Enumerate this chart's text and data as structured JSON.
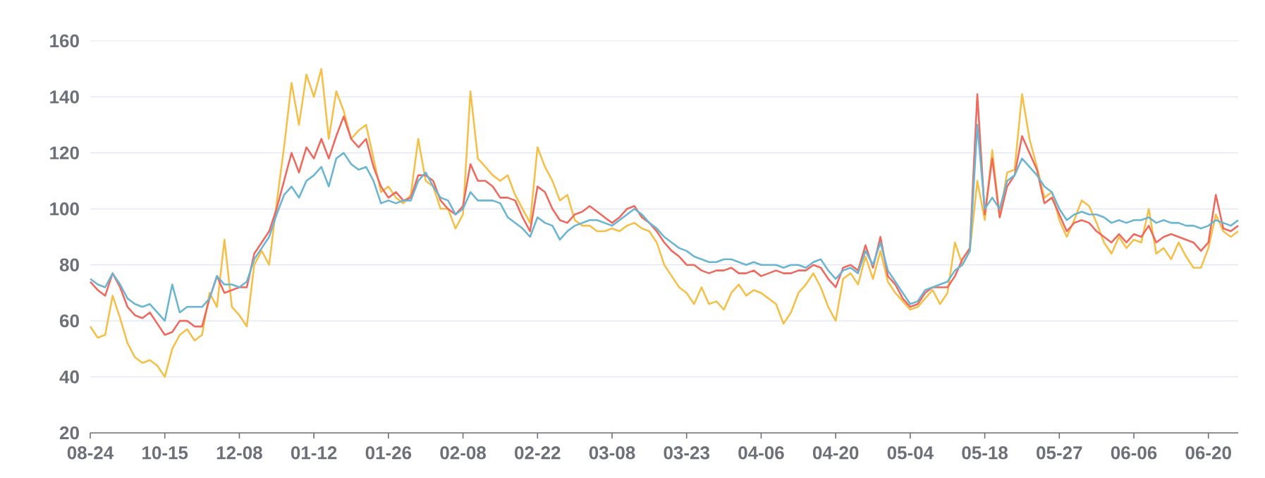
{
  "chart_data": {
    "type": "line",
    "grid": "y",
    "ylim": [
      20,
      160
    ],
    "yticks": [
      20,
      40,
      60,
      80,
      100,
      120,
      140,
      160
    ],
    "categories": [
      "08-24",
      null,
      null,
      null,
      null,
      null,
      null,
      null,
      null,
      null,
      "10-15",
      null,
      null,
      null,
      null,
      null,
      null,
      null,
      null,
      null,
      "12-08",
      null,
      null,
      null,
      null,
      null,
      null,
      null,
      null,
      null,
      "01-12",
      null,
      null,
      null,
      null,
      null,
      null,
      null,
      null,
      null,
      "01-26",
      null,
      null,
      null,
      null,
      null,
      null,
      null,
      null,
      null,
      "02-08",
      null,
      null,
      null,
      null,
      null,
      null,
      null,
      null,
      null,
      "02-22",
      null,
      null,
      null,
      null,
      null,
      null,
      null,
      null,
      null,
      "03-08",
      null,
      null,
      null,
      null,
      null,
      null,
      null,
      null,
      null,
      "03-23",
      null,
      null,
      null,
      null,
      null,
      null,
      null,
      null,
      null,
      "04-06",
      null,
      null,
      null,
      null,
      null,
      null,
      null,
      null,
      null,
      "04-20",
      null,
      null,
      null,
      null,
      null,
      null,
      null,
      null,
      null,
      "05-04",
      null,
      null,
      null,
      null,
      null,
      null,
      null,
      null,
      null,
      "05-18",
      null,
      null,
      null,
      null,
      null,
      null,
      null,
      null,
      null,
      "05-27",
      null,
      null,
      null,
      null,
      null,
      null,
      null,
      null,
      null,
      "06-06",
      null,
      null,
      null,
      null,
      null,
      null,
      null,
      null,
      null,
      "06-20",
      null,
      null,
      null,
      null
    ],
    "series": [
      {
        "color": "#f5c04a",
        "values": [
          58,
          54,
          55,
          69,
          61,
          52,
          47,
          45,
          46,
          44,
          40,
          50,
          55,
          57,
          53,
          55,
          70,
          65,
          89,
          65,
          62,
          58,
          80,
          85,
          80,
          102,
          122,
          145,
          130,
          148,
          140,
          150,
          125,
          142,
          135,
          125,
          128,
          130,
          118,
          106,
          108,
          104,
          102,
          105,
          125,
          110,
          108,
          100,
          100,
          93,
          98,
          142,
          118,
          115,
          112,
          110,
          112,
          105,
          100,
          95,
          122,
          115,
          110,
          103,
          105,
          96,
          94,
          94,
          92,
          92,
          93,
          92,
          94,
          95,
          93,
          92,
          88,
          80,
          76,
          72,
          70,
          66,
          72,
          66,
          67,
          64,
          70,
          73,
          69,
          71,
          70,
          68,
          66,
          59,
          63,
          70,
          73,
          77,
          72,
          65,
          60,
          75,
          77,
          73,
          83,
          75,
          85,
          74,
          70,
          67,
          64,
          65,
          68,
          71,
          66,
          70,
          88,
          80,
          85,
          110,
          96,
          121,
          97,
          113,
          114,
          141,
          125,
          115,
          104,
          106,
          96,
          90,
          96,
          103,
          101,
          95,
          88,
          84,
          90,
          86,
          89,
          88,
          100,
          84,
          86,
          82,
          88,
          83,
          79,
          79,
          86,
          98,
          92,
          90,
          92
        ]
      },
      {
        "color": "#ef6a5e",
        "values": [
          74,
          71,
          69,
          77,
          72,
          65,
          62,
          61,
          63,
          59,
          55,
          56,
          60,
          60,
          58,
          58,
          68,
          76,
          70,
          71,
          72,
          72,
          84,
          88,
          92,
          100,
          110,
          120,
          113,
          122,
          118,
          125,
          118,
          126,
          133,
          125,
          122,
          125,
          115,
          108,
          104,
          106,
          103,
          104,
          112,
          112,
          110,
          103,
          100,
          98,
          101,
          116,
          110,
          110,
          108,
          104,
          104,
          103,
          97,
          92,
          108,
          106,
          100,
          96,
          95,
          98,
          99,
          101,
          99,
          97,
          95,
          97,
          100,
          101,
          97,
          95,
          92,
          88,
          85,
          83,
          80,
          80,
          78,
          77,
          78,
          78,
          79,
          77,
          77,
          78,
          76,
          77,
          78,
          77,
          77,
          78,
          78,
          80,
          79,
          75,
          72,
          79,
          80,
          78,
          87,
          79,
          90,
          76,
          73,
          68,
          65,
          66,
          70,
          72,
          72,
          72,
          76,
          82,
          86,
          141,
          98,
          118,
          97,
          108,
          112,
          126,
          120,
          114,
          102,
          104,
          98,
          92,
          95,
          96,
          95,
          92,
          90,
          88,
          91,
          88,
          91,
          90,
          94,
          88,
          90,
          91,
          90,
          89,
          88,
          85,
          88,
          105,
          93,
          92,
          94
        ]
      },
      {
        "color": "#6bb5d3",
        "values": [
          75,
          73,
          72,
          77,
          73,
          68,
          66,
          65,
          66,
          63,
          60,
          73,
          63,
          65,
          65,
          65,
          68,
          76,
          73,
          73,
          72,
          74,
          82,
          86,
          90,
          98,
          105,
          108,
          104,
          110,
          112,
          115,
          108,
          118,
          120,
          116,
          114,
          115,
          110,
          102,
          103,
          102,
          103,
          103,
          110,
          113,
          108,
          104,
          103,
          98,
          100,
          106,
          103,
          103,
          103,
          102,
          97,
          95,
          93,
          90,
          97,
          95,
          94,
          89,
          92,
          94,
          95,
          96,
          96,
          95,
          94,
          96,
          98,
          100,
          98,
          95,
          93,
          90,
          88,
          86,
          85,
          83,
          82,
          81,
          81,
          82,
          82,
          81,
          80,
          81,
          80,
          80,
          80,
          79,
          80,
          80,
          79,
          81,
          82,
          78,
          75,
          78,
          79,
          77,
          85,
          80,
          88,
          78,
          74,
          70,
          66,
          67,
          71,
          72,
          73,
          74,
          78,
          80,
          85,
          130,
          100,
          104,
          100,
          110,
          112,
          118,
          115,
          112,
          108,
          106,
          100,
          96,
          98,
          99,
          98,
          98,
          97,
          95,
          96,
          95,
          96,
          96,
          97,
          95,
          96,
          95,
          95,
          94,
          94,
          93,
          94,
          96,
          95,
          94,
          96
        ]
      }
    ]
  }
}
